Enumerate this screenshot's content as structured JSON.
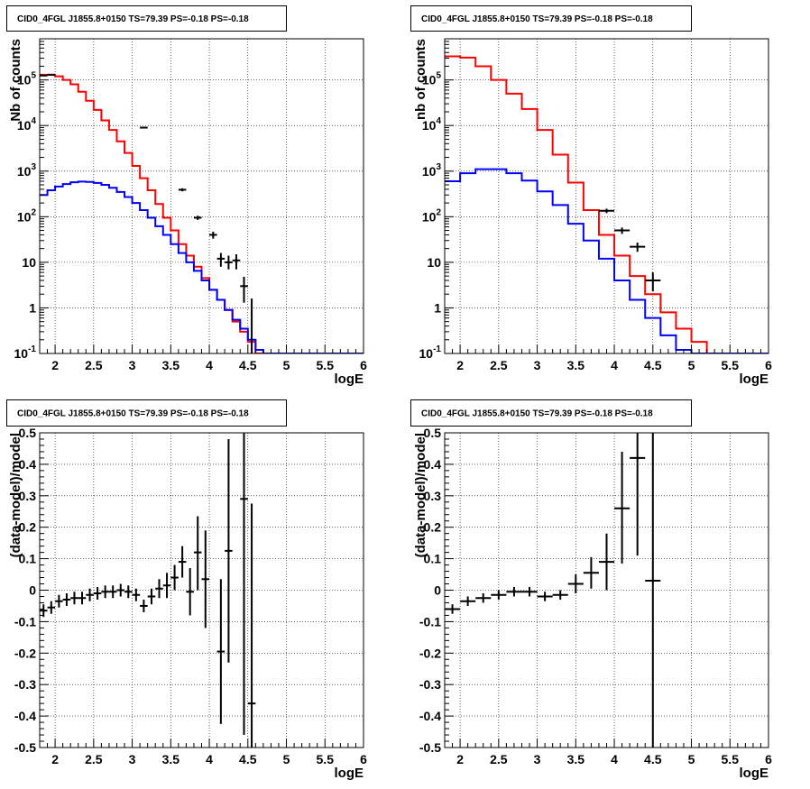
{
  "chart_data": [
    {
      "type": "line",
      "title": "CID0_4FGL J1855.8+0150 TS=79.39 PS=-0.18 PS=-0.18",
      "xlabel": "logE",
      "ylabel": "Nb of counts",
      "log_y": true,
      "xlim": [
        1.8,
        6.0
      ],
      "ylim": [
        0.1,
        800000
      ],
      "grid": true,
      "x_ticks": [
        "2",
        "2.5",
        "3",
        "3.5",
        "4",
        "4.5",
        "5",
        "5.5",
        "6"
      ],
      "y_ticks": [
        "10^{-1}",
        "1",
        "10",
        "10^{2}",
        "10^{3}",
        "10^{4}",
        "10^{5}"
      ],
      "bin_edges": [
        1.8,
        1.9,
        2.0,
        2.1,
        2.2,
        2.3,
        2.4,
        2.5,
        2.6,
        2.7,
        2.8,
        2.9,
        3.0,
        3.1,
        3.2,
        3.3,
        3.4,
        3.5,
        3.6,
        3.7,
        3.8,
        3.9,
        4.0,
        4.1,
        4.2,
        4.3,
        4.4,
        4.5,
        4.6,
        4.7,
        4.8,
        4.9,
        5.0,
        5.1,
        5.2,
        5.3,
        5.4,
        5.5,
        5.6,
        5.7,
        5.8,
        5.9,
        6.0
      ],
      "series": [
        {
          "color": "#ff0000",
          "style": "step",
          "values": [
            130000,
            130000,
            120000,
            100000,
            80000,
            55000,
            35000,
            22000,
            13000,
            8000,
            4500,
            2500,
            1300,
            700,
            380,
            190,
            95,
            50,
            25,
            14,
            8,
            4.5,
            2.5,
            1.5,
            0.9,
            0.5,
            0.3,
            0.18,
            0.1,
            0.1,
            0.1,
            0.1,
            0.1,
            0.1,
            0.1,
            0.1,
            0.1,
            0.1,
            0.1,
            0.1,
            0.1,
            0.1
          ]
        },
        {
          "color": "#0000ff",
          "style": "step",
          "values": [
            300,
            380,
            460,
            520,
            570,
            590,
            580,
            550,
            500,
            430,
            350,
            270,
            200,
            140,
            95,
            62,
            40,
            25,
            16,
            10,
            6.5,
            4,
            2.5,
            1.5,
            0.9,
            0.55,
            0.35,
            0.2,
            0.12,
            0.1,
            0.1,
            0.1,
            0.1,
            0.1,
            0.1,
            0.1,
            0.1,
            0.1,
            0.1,
            0.1,
            0.1,
            0.1
          ]
        },
        {
          "color": "#000000",
          "style": "points",
          "points": [
            {
              "x": 1.85,
              "y": 125000,
              "dx": 0.05,
              "ylo": 124000,
              "yhi": 126000
            },
            {
              "x": 1.95,
              "y": 130000,
              "dx": 0.05,
              "ylo": 129000,
              "yhi": 131000
            },
            {
              "x": 3.15,
              "y": 9000,
              "dx": 0.05,
              "ylo": 8800,
              "yhi": 9200
            },
            {
              "x": 3.65,
              "y": 390,
              "dx": 0.05,
              "ylo": 360,
              "yhi": 420
            },
            {
              "x": 3.85,
              "y": 95,
              "dx": 0.05,
              "ylo": 85,
              "yhi": 105
            },
            {
              "x": 4.05,
              "y": 40,
              "dx": 0.05,
              "ylo": 33,
              "yhi": 47
            },
            {
              "x": 4.15,
              "y": 12,
              "dx": 0.05,
              "ylo": 8,
              "yhi": 16
            },
            {
              "x": 4.25,
              "y": 10,
              "dx": 0.05,
              "ylo": 7,
              "yhi": 14
            },
            {
              "x": 4.35,
              "y": 11,
              "dx": 0.05,
              "ylo": 7,
              "yhi": 15
            },
            {
              "x": 4.45,
              "y": 3,
              "dx": 0.05,
              "ylo": 1.3,
              "yhi": 4.8
            },
            {
              "x": 4.55,
              "y": 0.1,
              "dx": 0.0,
              "ylo": 0.1,
              "yhi": 1.6
            }
          ]
        }
      ]
    },
    {
      "type": "line",
      "title": "CID0_4FGL J1855.8+0150 TS=79.39 PS=-0.18 PS=-0.18",
      "xlabel": "logE",
      "ylabel": "nb of counts",
      "log_y": true,
      "xlim": [
        1.8,
        6.0
      ],
      "ylim": [
        0.1,
        800000
      ],
      "grid": true,
      "x_ticks": [
        "2",
        "2.5",
        "3",
        "3.5",
        "4",
        "4.5",
        "5",
        "5.5",
        "6"
      ],
      "y_ticks": [
        "10^{-1}",
        "1",
        "10",
        "10^{2}",
        "10^{3}",
        "10^{4}",
        "10^{5}"
      ],
      "bin_edges": [
        1.8,
        2.0,
        2.2,
        2.4,
        2.6,
        2.8,
        3.0,
        3.2,
        3.4,
        3.6,
        3.8,
        4.0,
        4.2,
        4.4,
        4.6,
        4.8,
        5.0,
        5.2,
        5.4,
        5.6,
        5.8,
        6.0
      ],
      "series": [
        {
          "color": "#ff0000",
          "style": "step",
          "values": [
            330000,
            310000,
            200000,
            100000,
            50000,
            23000,
            8000,
            2300,
            560,
            140,
            40,
            14,
            5,
            2,
            0.8,
            0.35,
            0.18,
            0.1,
            0.1,
            0.1,
            0.1
          ]
        },
        {
          "color": "#0000ff",
          "style": "step",
          "values": [
            600,
            900,
            1100,
            1100,
            900,
            620,
            360,
            180,
            70,
            30,
            12,
            4,
            1.5,
            0.6,
            0.25,
            0.12,
            0.1,
            0.1,
            0.1,
            0.1,
            0.1
          ]
        },
        {
          "color": "#000000",
          "style": "points",
          "points": [
            {
              "x": 3.9,
              "y": 135,
              "dx": 0.1,
              "ylo": 120,
              "yhi": 150
            },
            {
              "x": 4.1,
              "y": 50,
              "dx": 0.1,
              "ylo": 42,
              "yhi": 58
            },
            {
              "x": 4.3,
              "y": 22,
              "dx": 0.1,
              "ylo": 17,
              "yhi": 27
            },
            {
              "x": 4.5,
              "y": 4,
              "dx": 0.1,
              "ylo": 2.3,
              "yhi": 6
            }
          ]
        }
      ]
    },
    {
      "type": "scatter",
      "title": "CID0_4FGL J1855.8+0150 TS=79.39 PS=-0.18 PS=-0.18",
      "xlabel": "logE",
      "ylabel": "(data-model)/model",
      "xlim": [
        1.8,
        6.0
      ],
      "ylim": [
        -0.5,
        0.5
      ],
      "grid": true,
      "x_ticks": [
        "2",
        "2.5",
        "3",
        "3.5",
        "4",
        "4.5",
        "5",
        "5.5",
        "6"
      ],
      "y_ticks": [
        "-0.5",
        "-0.4",
        "-0.3",
        "-0.2",
        "-0.1",
        "0",
        "0.1",
        "0.2",
        "0.3",
        "0.4",
        "0.5"
      ],
      "series": [
        {
          "color": "#000000",
          "style": "points",
          "points": [
            {
              "x": 1.85,
              "y": -0.065,
              "dx": 0.05,
              "ylo": -0.085,
              "yhi": -0.045
            },
            {
              "x": 1.95,
              "y": -0.055,
              "dx": 0.05,
              "ylo": -0.075,
              "yhi": -0.035
            },
            {
              "x": 2.05,
              "y": -0.035,
              "dx": 0.05,
              "ylo": -0.055,
              "yhi": -0.015
            },
            {
              "x": 2.15,
              "y": -0.03,
              "dx": 0.05,
              "ylo": -0.05,
              "yhi": -0.01
            },
            {
              "x": 2.25,
              "y": -0.025,
              "dx": 0.05,
              "ylo": -0.045,
              "yhi": -0.005
            },
            {
              "x": 2.35,
              "y": -0.025,
              "dx": 0.05,
              "ylo": -0.045,
              "yhi": -0.005
            },
            {
              "x": 2.45,
              "y": -0.015,
              "dx": 0.05,
              "ylo": -0.035,
              "yhi": 0.005
            },
            {
              "x": 2.55,
              "y": -0.01,
              "dx": 0.05,
              "ylo": -0.03,
              "yhi": 0.01
            },
            {
              "x": 2.65,
              "y": -0.005,
              "dx": 0.05,
              "ylo": -0.025,
              "yhi": 0.015
            },
            {
              "x": 2.75,
              "y": -0.005,
              "dx": 0.05,
              "ylo": -0.025,
              "yhi": 0.015
            },
            {
              "x": 2.85,
              "y": 0.0,
              "dx": 0.05,
              "ylo": -0.02,
              "yhi": 0.02
            },
            {
              "x": 2.95,
              "y": -0.005,
              "dx": 0.05,
              "ylo": -0.025,
              "yhi": 0.015
            },
            {
              "x": 3.05,
              "y": -0.015,
              "dx": 0.05,
              "ylo": -0.035,
              "yhi": 0.005
            },
            {
              "x": 3.15,
              "y": -0.05,
              "dx": 0.05,
              "ylo": -0.07,
              "yhi": -0.03
            },
            {
              "x": 3.25,
              "y": -0.02,
              "dx": 0.05,
              "ylo": -0.045,
              "yhi": 0.005
            },
            {
              "x": 3.35,
              "y": 0.005,
              "dx": 0.05,
              "ylo": -0.025,
              "yhi": 0.035
            },
            {
              "x": 3.45,
              "y": 0.015,
              "dx": 0.05,
              "ylo": -0.025,
              "yhi": 0.055
            },
            {
              "x": 3.55,
              "y": 0.04,
              "dx": 0.05,
              "ylo": 0.0,
              "yhi": 0.08
            },
            {
              "x": 3.65,
              "y": 0.09,
              "dx": 0.05,
              "ylo": 0.04,
              "yhi": 0.14
            },
            {
              "x": 3.75,
              "y": -0.005,
              "dx": 0.05,
              "ylo": -0.08,
              "yhi": 0.07
            },
            {
              "x": 3.85,
              "y": 0.12,
              "dx": 0.05,
              "ylo": 0.0,
              "yhi": 0.235
            },
            {
              "x": 3.95,
              "y": 0.035,
              "dx": 0.05,
              "ylo": -0.12,
              "yhi": 0.19
            },
            {
              "x": 4.15,
              "y": -0.195,
              "dx": 0.05,
              "ylo": -0.425,
              "yhi": 0.035
            },
            {
              "x": 4.25,
              "y": 0.125,
              "dx": 0.05,
              "ylo": -0.23,
              "yhi": 0.48
            },
            {
              "x": 4.45,
              "y": 0.29,
              "dx": 0.05,
              "ylo": -0.46,
              "yhi": 0.5
            },
            {
              "x": 4.55,
              "y": -0.36,
              "dx": 0.05,
              "ylo": -0.5,
              "yhi": 0.275
            }
          ]
        }
      ]
    },
    {
      "type": "scatter",
      "title": "CID0_4FGL J1855.8+0150 TS=79.39 PS=-0.18 PS=-0.18",
      "xlabel": "logE",
      "ylabel": "(data-model)/model",
      "xlim": [
        1.8,
        6.0
      ],
      "ylim": [
        -0.5,
        0.5
      ],
      "grid": true,
      "x_ticks": [
        "2",
        "2.5",
        "3",
        "3.5",
        "4",
        "4.5",
        "5",
        "5.5",
        "6"
      ],
      "y_ticks": [
        "-0.5",
        "-0.4",
        "-0.3",
        "-0.2",
        "-0.1",
        "0",
        "0.1",
        "0.2",
        "0.3",
        "0.4",
        "0.5"
      ],
      "series": [
        {
          "color": "#000000",
          "style": "points",
          "points": [
            {
              "x": 1.9,
              "y": -0.06,
              "dx": 0.1,
              "ylo": -0.075,
              "yhi": -0.045
            },
            {
              "x": 2.1,
              "y": -0.035,
              "dx": 0.1,
              "ylo": -0.05,
              "yhi": -0.02
            },
            {
              "x": 2.3,
              "y": -0.025,
              "dx": 0.1,
              "ylo": -0.04,
              "yhi": -0.01
            },
            {
              "x": 2.5,
              "y": -0.015,
              "dx": 0.1,
              "ylo": -0.03,
              "yhi": 0.0
            },
            {
              "x": 2.7,
              "y": -0.005,
              "dx": 0.1,
              "ylo": -0.02,
              "yhi": 0.01
            },
            {
              "x": 2.9,
              "y": -0.005,
              "dx": 0.1,
              "ylo": -0.02,
              "yhi": 0.01
            },
            {
              "x": 3.1,
              "y": -0.02,
              "dx": 0.1,
              "ylo": -0.035,
              "yhi": -0.005
            },
            {
              "x": 3.3,
              "y": -0.015,
              "dx": 0.1,
              "ylo": -0.03,
              "yhi": 0.0
            },
            {
              "x": 3.5,
              "y": 0.02,
              "dx": 0.1,
              "ylo": -0.01,
              "yhi": 0.05
            },
            {
              "x": 3.7,
              "y": 0.055,
              "dx": 0.1,
              "ylo": 0.005,
              "yhi": 0.105
            },
            {
              "x": 3.9,
              "y": 0.09,
              "dx": 0.1,
              "ylo": 0.0,
              "yhi": 0.18
            },
            {
              "x": 4.1,
              "y": 0.26,
              "dx": 0.1,
              "ylo": 0.085,
              "yhi": 0.44
            },
            {
              "x": 4.3,
              "y": 0.42,
              "dx": 0.1,
              "ylo": 0.11,
              "yhi": 0.5
            },
            {
              "x": 4.5,
              "y": 0.03,
              "dx": 0.1,
              "ylo": -0.5,
              "yhi": 0.5
            }
          ]
        }
      ]
    }
  ]
}
